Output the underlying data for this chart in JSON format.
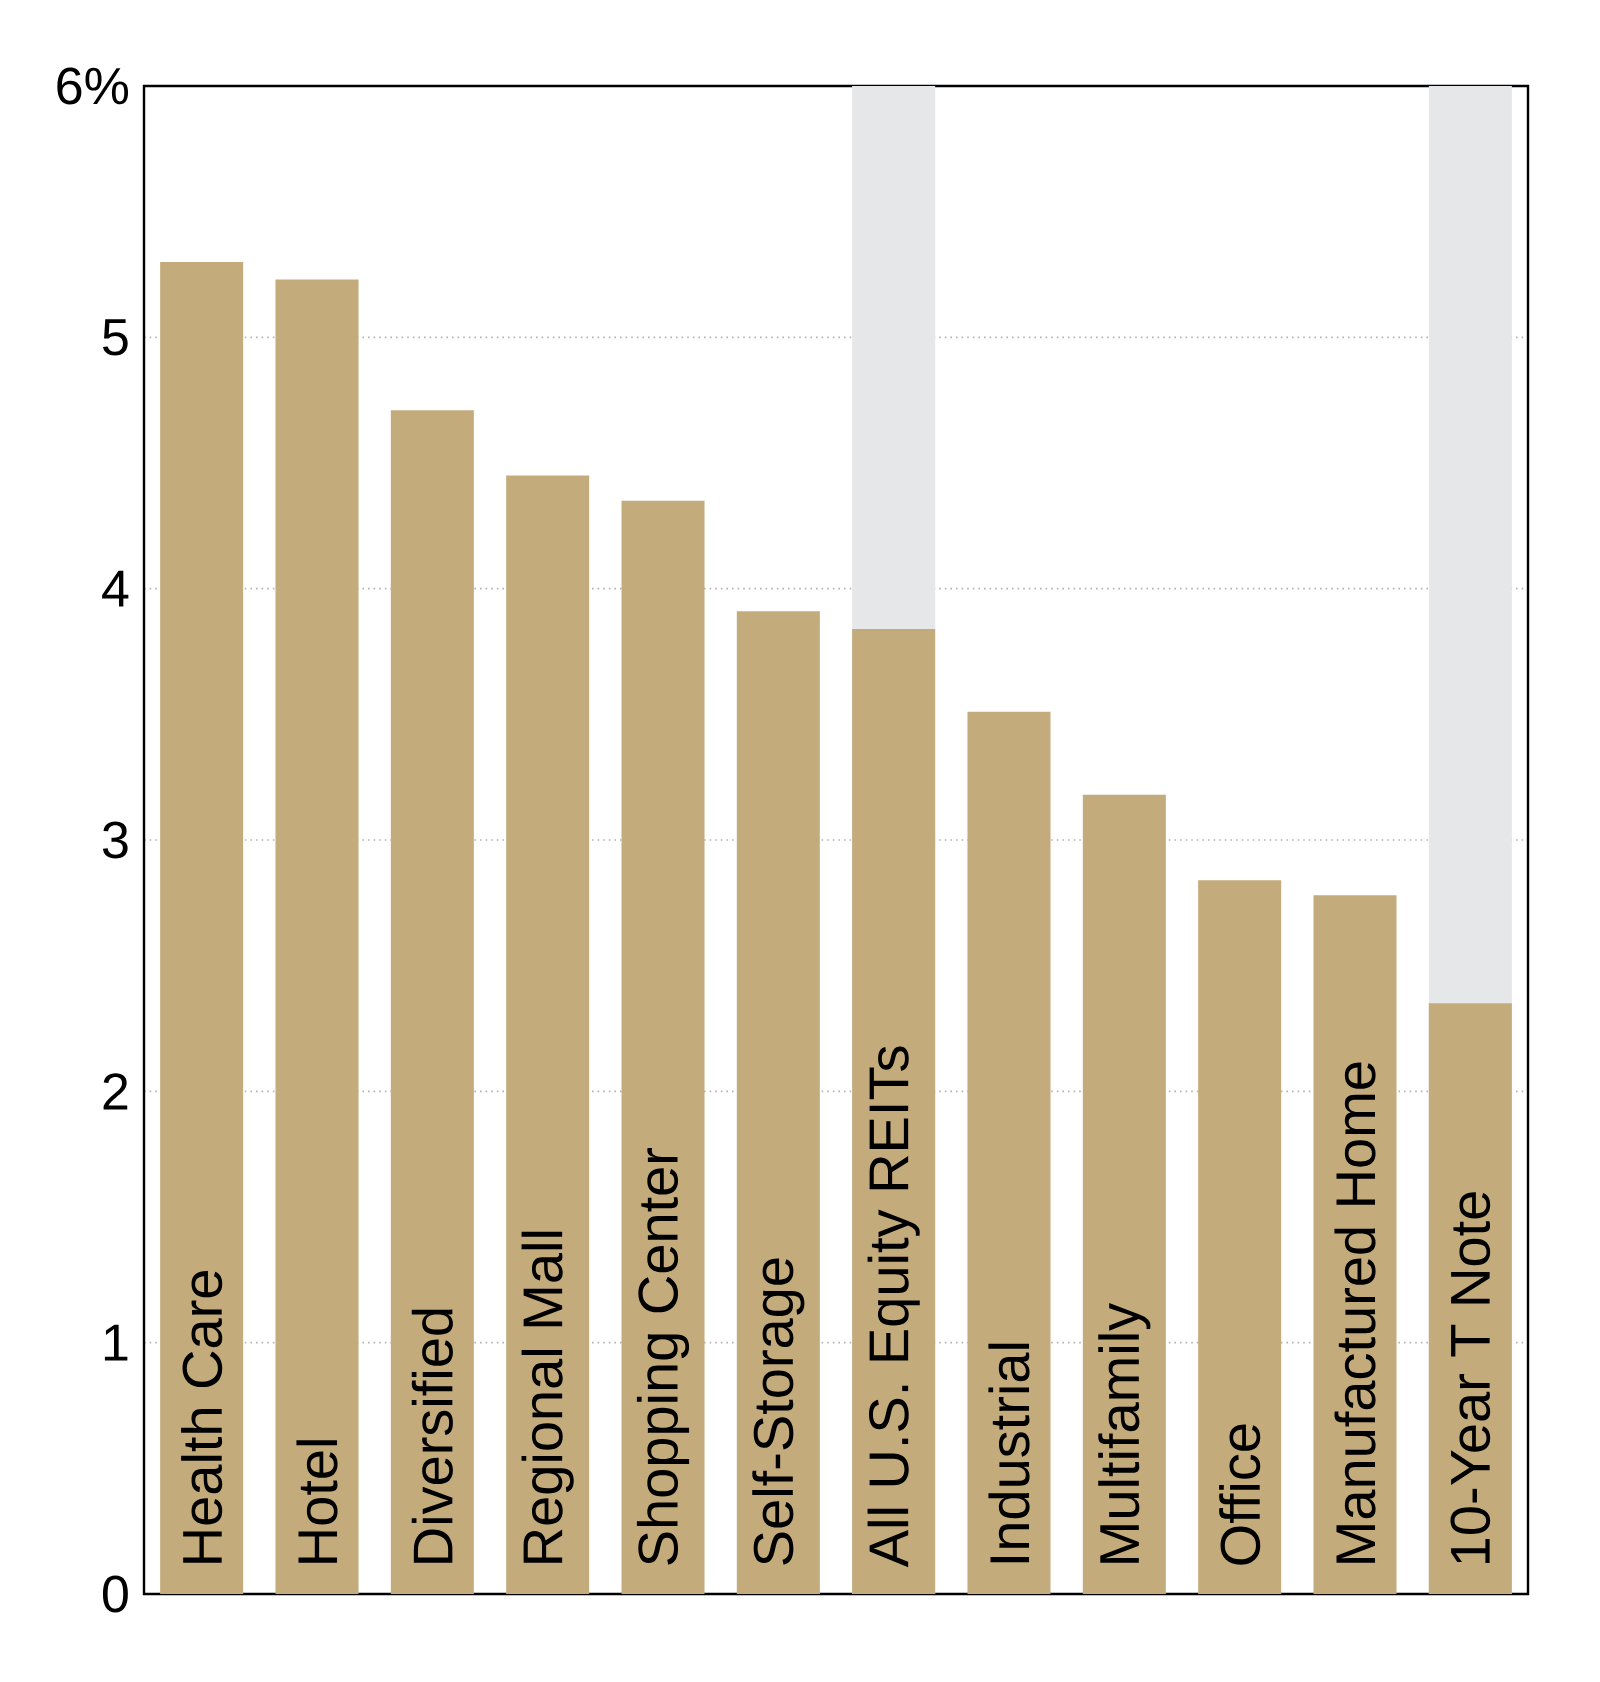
{
  "chart_data": {
    "type": "bar",
    "categories": [
      "Health Care",
      "Hotel",
      "Diversified",
      "Regional Mall",
      "Shopping Center",
      "Self-Storage",
      "All U.S. Equity REITs",
      "Industrial",
      "Multifamily",
      "Office",
      "Manufactured Home",
      "10-Year T Note"
    ],
    "values": [
      5.3,
      5.23,
      4.71,
      4.45,
      4.35,
      3.91,
      3.84,
      3.51,
      3.18,
      2.84,
      2.78,
      2.35
    ],
    "color": "#c4ab7c",
    "ylim": [
      0,
      6
    ],
    "yticks": [
      0,
      1,
      2,
      3,
      4,
      5,
      {
        "value": 6,
        "label": "6%"
      }
    ],
    "grid": "y",
    "bands": [
      {
        "axis": "x",
        "from": "All U.S. Equity REITs",
        "to": "All U.S. Equity REITs",
        "color": "#e6e7e8"
      },
      {
        "axis": "x",
        "from": "10-Year T Note",
        "to": "10-Year T Note",
        "color": "#e6e7e8"
      }
    ]
  }
}
